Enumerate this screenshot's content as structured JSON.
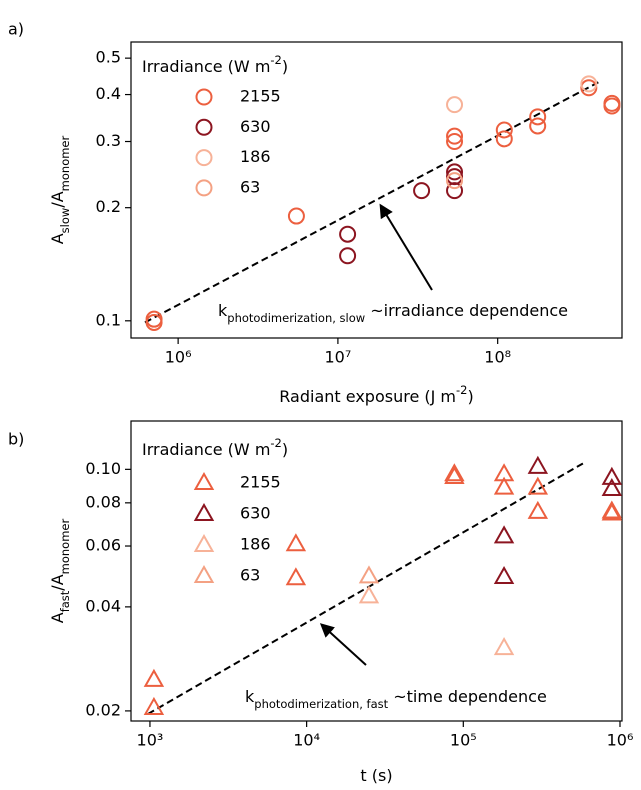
{
  "chart_data": [
    {
      "type": "scatter",
      "panel_label": "a)",
      "marker": "circle",
      "xlabel": [
        "Radiant exposure (J m",
        "-2",
        ")"
      ],
      "ylabel": [
        "A",
        "slow",
        "/A",
        "monomer"
      ],
      "legend_title": [
        "Irradiance (W m",
        "-2",
        ")"
      ],
      "annotation": [
        "k",
        "photodimerization, slow",
        " ~irradiance dependence"
      ],
      "xscale": "log",
      "yscale": "log",
      "legend": "upper left",
      "xlim": [
        507000,
        600000000
      ],
      "ylim": [
        0.09,
        0.552
      ],
      "xticks": [
        {
          "value": 1000000,
          "label": "10⁶"
        },
        {
          "value": 10000000,
          "label": "10⁷"
        },
        {
          "value": 100000000,
          "label": "10⁸"
        }
      ],
      "yticks": [
        0.1,
        0.2,
        0.3,
        0.4,
        0.5
      ],
      "series": [
        {
          "name": "2155",
          "color": "#ec5f3f",
          "x": [
            707000,
            707000,
            5500000,
            53700000,
            53700000,
            110000000,
            110000000,
            178000000,
            178000000,
            372000000,
            519000000,
            519000000
          ],
          "values": [
            0.101,
            0.099,
            0.19,
            0.31,
            0.3,
            0.322,
            0.305,
            0.349,
            0.33,
            0.417,
            0.379,
            0.373
          ]
        },
        {
          "name": "630",
          "color": "#8c1520",
          "x": [
            11500000,
            11500000,
            33400000,
            53700000,
            53700000,
            53700000
          ],
          "values": [
            0.17,
            0.149,
            0.222,
            0.249,
            0.242,
            0.222
          ]
        },
        {
          "name": "186",
          "color": "#f7b298",
          "x": [
            53700000,
            372000000
          ],
          "values": [
            0.376,
            0.427
          ]
        },
        {
          "name": "63",
          "color": "#f4a183",
          "x": [
            53700000
          ],
          "values": [
            0.236
          ]
        }
      ],
      "fit": {
        "color": "#000000",
        "x": [
          620000,
          430000000
        ],
        "values": [
          0.099,
          0.432
        ]
      }
    },
    {
      "type": "scatter",
      "panel_label": "b)",
      "marker": "triangle",
      "xlabel": [
        "t (s)"
      ],
      "ylabel": [
        "A",
        "fast",
        "/A",
        "monomer"
      ],
      "legend_title": [
        "Irradiance (W m",
        "-2",
        ")"
      ],
      "annotation": [
        "k",
        "photodimerization, fast",
        " ~time dependence"
      ],
      "xscale": "log",
      "yscale": "log",
      "legend": "upper left",
      "xlim": [
        757,
        1030000
      ],
      "ylim": [
        0.0187,
        0.138
      ],
      "xticks": [
        {
          "value": 1000,
          "label": "10³"
        },
        {
          "value": 10000,
          "label": "10⁴"
        },
        {
          "value": 100000,
          "label": "10⁵"
        },
        {
          "value": 1000000,
          "label": "10⁶"
        }
      ],
      "yticks": [
        0.02,
        0.04,
        0.06,
        0.08,
        {
          "value": 0.1,
          "label": "0.10"
        }
      ],
      "series": [
        {
          "name": "2155",
          "color": "#ec5f3f",
          "x": [
            1060,
            1060,
            8540,
            8540,
            87700,
            87700,
            182000,
            182000,
            299000,
            299000,
            887000,
            887000
          ],
          "values": [
            0.0246,
            0.0204,
            0.0607,
            0.0484,
            0.0968,
            0.095,
            0.0968,
            0.0885,
            0.0885,
            0.0753,
            0.0755,
            0.0745
          ]
        },
        {
          "name": "630",
          "color": "#8c1520",
          "x": [
            182000,
            182000,
            299000,
            887000,
            887000
          ],
          "values": [
            0.064,
            0.0488,
            0.1017,
            0.0945,
            0.0877
          ]
        },
        {
          "name": "186",
          "color": "#f7b298",
          "x": [
            182000,
            25000
          ],
          "values": [
            0.0304,
            0.0429
          ]
        },
        {
          "name": "63",
          "color": "#f4a183",
          "x": [
            25000
          ],
          "values": [
            0.049
          ]
        }
      ],
      "fit": {
        "color": "#000000",
        "x": [
          971,
          580000
        ],
        "values": [
          0.0196,
          0.104
        ]
      }
    }
  ]
}
